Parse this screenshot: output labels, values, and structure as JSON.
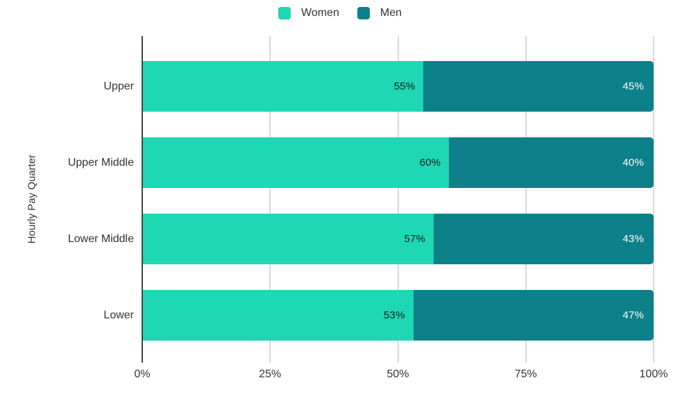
{
  "colors": {
    "women": "#1ED7B4",
    "men": "#0D818A",
    "gridline": "#d9d9d9",
    "axis_line": "#424242",
    "text": "#333333",
    "label_on_women": "#1a1a1a",
    "label_on_men": "#ffffff",
    "background": "#ffffff"
  },
  "legend": {
    "entries": [
      {
        "label": "Women"
      },
      {
        "label": "Men"
      }
    ]
  },
  "chart_data": {
    "type": "bar",
    "orientation": "horizontal",
    "stacked": true,
    "title": "",
    "xlabel": "",
    "ylabel": "Hourly Pay Quarter",
    "categories": [
      "Upper",
      "Upper Middle",
      "Lower Middle",
      "Lower"
    ],
    "series": [
      {
        "name": "Women",
        "color": "#1ED7B4",
        "values": [
          55,
          60,
          57,
          53
        ],
        "labels": [
          "55%",
          "60%",
          "57%",
          "53%"
        ]
      },
      {
        "name": "Men",
        "color": "#0D818A",
        "values": [
          45,
          40,
          43,
          47
        ],
        "labels": [
          "45%",
          "40%",
          "43%",
          "47%"
        ]
      }
    ],
    "xlim": [
      0,
      100
    ],
    "x_ticks": [
      {
        "label": "0%",
        "position": 0
      },
      {
        "label": "25%",
        "position": 25
      },
      {
        "label": "50%",
        "position": 50
      },
      {
        "label": "75%",
        "position": 75
      },
      {
        "label": "100%",
        "position": 100
      }
    ],
    "grid": true,
    "legend_position": "top"
  }
}
